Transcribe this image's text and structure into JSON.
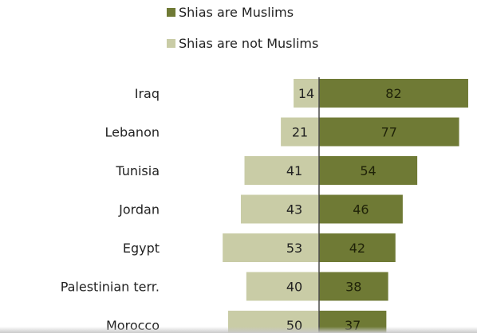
{
  "chart_data": {
    "type": "bar",
    "orientation": "horizontal-diverging",
    "categories": [
      "Iraq",
      "Lebanon",
      "Tunisia",
      "Jordan",
      "Egypt",
      "Palestinian terr.",
      "Morocco"
    ],
    "series": [
      {
        "name": "Shias are Muslims",
        "values": [
          82,
          77,
          54,
          46,
          42,
          38,
          37
        ],
        "color": "#6f7a35",
        "side": "right"
      },
      {
        "name": "Shias are not Muslims",
        "values": [
          14,
          21,
          41,
          43,
          53,
          40,
          50
        ],
        "color": "#c9cca6",
        "side": "left"
      }
    ],
    "data_labels": true,
    "legend_position": "top",
    "grid": false
  }
}
